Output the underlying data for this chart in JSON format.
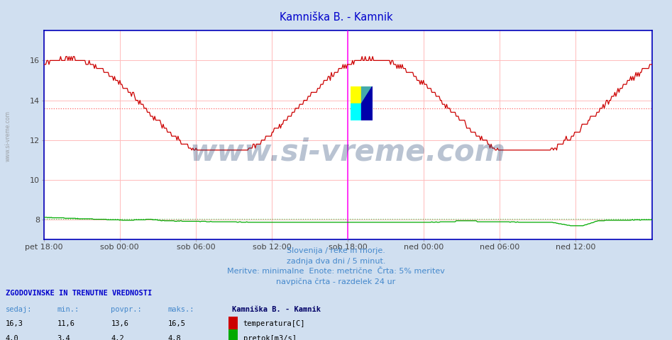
{
  "title": "Kamniška B. - Kamnik",
  "title_color": "#0000cc",
  "bg_color": "#d0dff0",
  "plot_bg_color": "#ffffff",
  "grid_color": "#ffbbbb",
  "border_color": "#0000bb",
  "x_labels": [
    "pet 18:00",
    "sob 00:00",
    "sob 06:00",
    "sob 12:00",
    "sob 18:00",
    "ned 00:00",
    "ned 06:00",
    "ned 12:00"
  ],
  "x_ticks_norm": [
    0.0,
    0.125,
    0.25,
    0.375,
    0.5,
    0.625,
    0.75,
    0.875
  ],
  "ylim": [
    7.0,
    17.5
  ],
  "yticks": [
    8,
    10,
    12,
    14,
    16
  ],
  "temp_avg": 13.6,
  "temp_min": 11.6,
  "flow_avg": 4.2,
  "flow_min": 3.4,
  "temp_color": "#cc0000",
  "flow_color": "#00aa00",
  "avg_line_color_temp": "#ff6666",
  "avg_line_color_flow": "#66cc66",
  "vline_color": "#ff00ff",
  "vline_pos": 0.5,
  "watermark": "www.si-vreme.com",
  "watermark_color": "#1a3a6a",
  "watermark_alpha": 0.3,
  "subtitle1": "Slovenija / reke in morje.",
  "subtitle2": "zadnja dva dni / 5 minut.",
  "subtitle3": "Meritve: minimalne  Enote: metrične  Črta: 5% meritev",
  "subtitle4": "navpična črta - razdelek 24 ur",
  "subtitle_color": "#4488cc",
  "legend_title": "Kamniška B. - Kamnik",
  "legend_title_color": "#000066",
  "stats_header_color": "#0000cc",
  "stats_label_color": "#4488cc",
  "stats_value_color": "#000000",
  "ylabel_color": "#888888",
  "ylabel_text": "www.si-vreme.com",
  "footer_bg_color": "#d0dff0",
  "flow_display_min": 7.0,
  "flow_display_max": 8.5,
  "flow_data_min": 0.0,
  "flow_data_max": 6.0
}
